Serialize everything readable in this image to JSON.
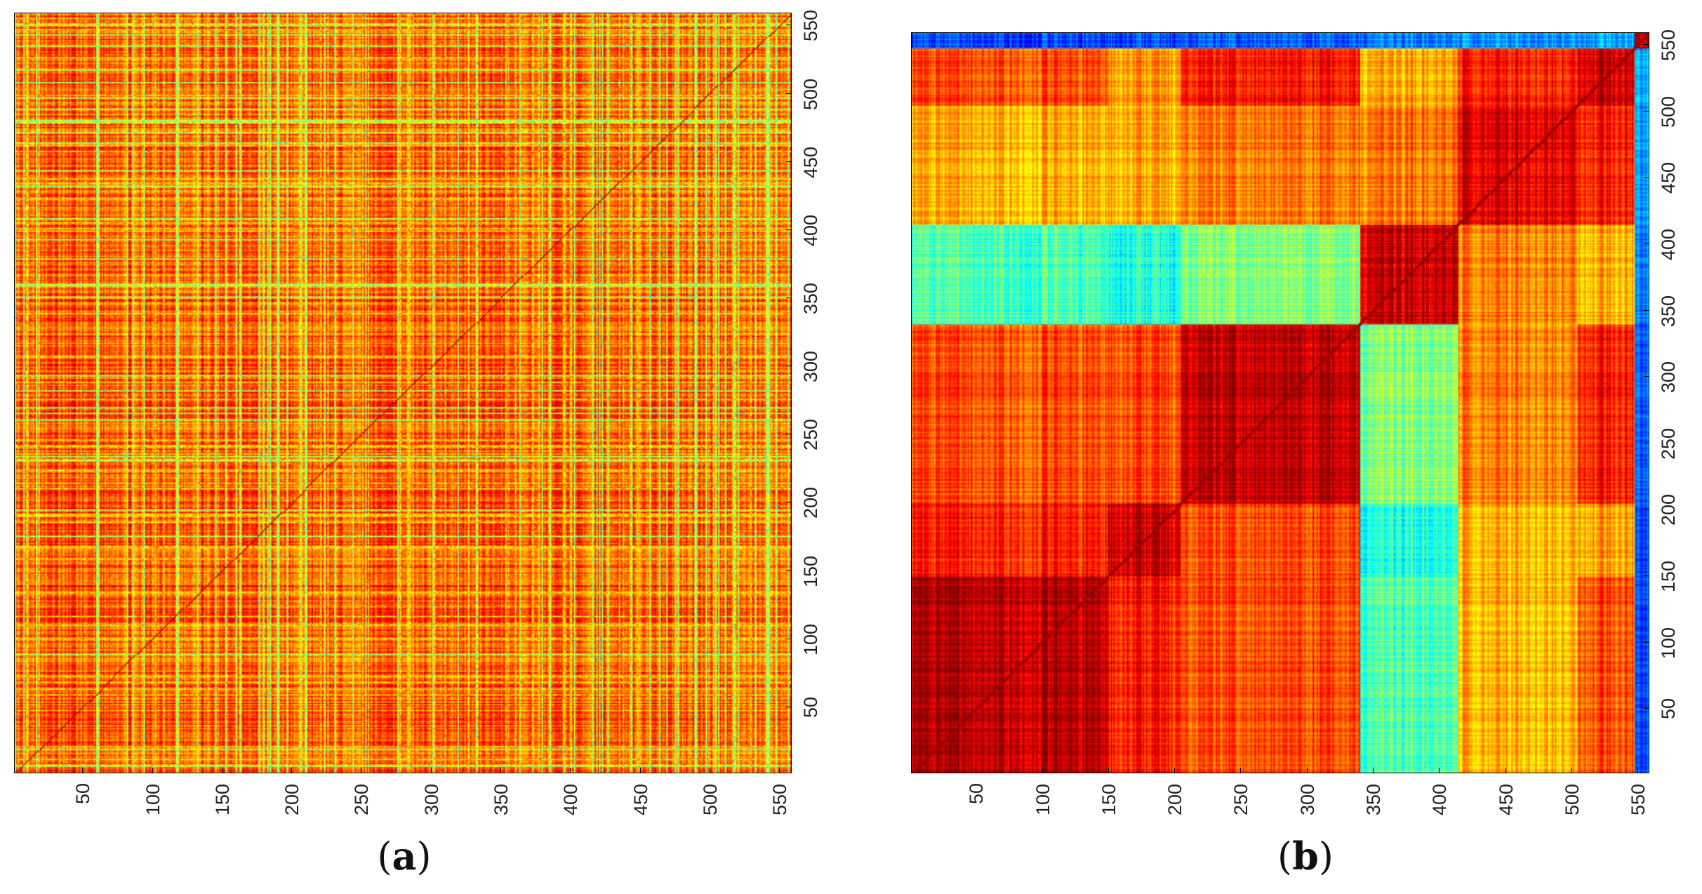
{
  "chart_data": [
    {
      "type": "heatmap",
      "panel_label": "a",
      "description_mode": "noisy",
      "xlabel": "",
      "ylabel": "",
      "xlim": [
        1,
        559
      ],
      "ylim": [
        1,
        559
      ],
      "x_tick_labels": [
        "50",
        "100",
        "150",
        "200",
        "250",
        "300",
        "350",
        "400",
        "450",
        "500",
        "550"
      ],
      "y_tick_labels": [
        "50",
        "100",
        "150",
        "200",
        "250",
        "300",
        "350",
        "400",
        "450",
        "500",
        "550"
      ],
      "colormap": "jet",
      "value_range": [
        0,
        1
      ],
      "block_boundaries": [],
      "block_levels": []
    },
    {
      "type": "heatmap",
      "panel_label": "b",
      "description_mode": "clustered",
      "xlabel": "",
      "ylabel": "",
      "xlim": [
        1,
        559
      ],
      "ylim": [
        1,
        559
      ],
      "x_tick_labels": [
        "50",
        "100",
        "150",
        "200",
        "250",
        "300",
        "350",
        "400",
        "450",
        "500",
        "550"
      ],
      "y_tick_labels": [
        "50",
        "100",
        "150",
        "200",
        "250",
        "300",
        "350",
        "400",
        "450",
        "500",
        "550"
      ],
      "colormap": "jet",
      "value_range": [
        0,
        1
      ],
      "block_boundaries": [
        1,
        150,
        205,
        340,
        415,
        505,
        548,
        559
      ],
      "block_levels": [
        [
          0.95,
          0.85,
          0.8,
          0.45,
          0.7,
          0.8,
          0.2
        ],
        [
          0.85,
          0.92,
          0.8,
          0.4,
          0.7,
          0.72,
          0.2
        ],
        [
          0.8,
          0.8,
          0.93,
          0.5,
          0.75,
          0.85,
          0.22
        ],
        [
          0.45,
          0.4,
          0.5,
          0.92,
          0.75,
          0.7,
          0.25
        ],
        [
          0.7,
          0.7,
          0.75,
          0.75,
          0.9,
          0.85,
          0.28
        ],
        [
          0.8,
          0.72,
          0.85,
          0.7,
          0.85,
          0.92,
          0.3
        ],
        [
          0.2,
          0.2,
          0.22,
          0.25,
          0.28,
          0.3,
          0.95
        ]
      ]
    }
  ]
}
